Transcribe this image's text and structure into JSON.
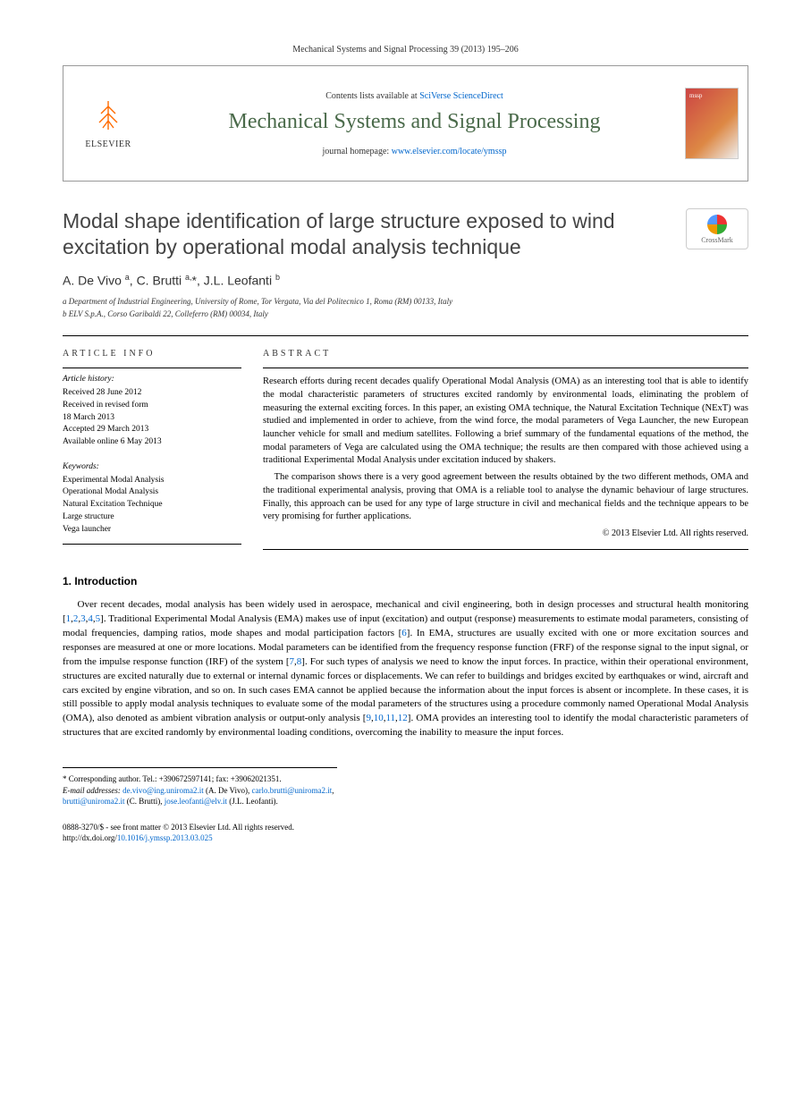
{
  "header": {
    "citation": "Mechanical Systems and Signal Processing 39 (2013) 195–206",
    "contents_prefix": "Contents lists available at ",
    "contents_link": "SciVerse ScienceDirect",
    "journal_title": "Mechanical Systems and Signal Processing",
    "homepage_prefix": "journal homepage: ",
    "homepage_link": "www.elsevier.com/locate/ymssp",
    "publisher": "ELSEVIER",
    "cover_label": "mssp"
  },
  "article": {
    "title": "Modal shape identification of large structure exposed to wind excitation by operational modal analysis technique",
    "crossmark": "CrossMark",
    "authors_html": "A. De Vivo <sup>a</sup>, C. Brutti <sup>a,</sup>*, J.L. Leofanti <sup>b</sup>",
    "affiliations": [
      "a Department of Industrial Engineering, University of Rome, Tor Vergata, Via del Politecnico 1, Roma (RM) 00133, Italy",
      "b ELV S.p.A., Corso Garibaldi 22, Colleferro (RM) 00034, Italy"
    ]
  },
  "info": {
    "label": "ARTICLE INFO",
    "history_label": "Article history:",
    "history": [
      "Received 28 June 2012",
      "Received in revised form",
      "18 March 2013",
      "Accepted 29 March 2013",
      "Available online 6 May 2013"
    ],
    "keywords_label": "Keywords:",
    "keywords": [
      "Experimental Modal Analysis",
      "Operational Modal Analysis",
      "Natural Excitation Technique",
      "Large structure",
      "Vega launcher"
    ]
  },
  "abstract": {
    "label": "ABSTRACT",
    "paragraphs": [
      "Research efforts during recent decades qualify Operational Modal Analysis (OMA) as an interesting tool that is able to identify the modal characteristic parameters of structures excited randomly by environmental loads, eliminating the problem of measuring the external exciting forces. In this paper, an existing OMA technique, the Natural Excitation Technique (NExT) was studied and implemented in order to achieve, from the wind force, the modal parameters of Vega Launcher, the new European launcher vehicle for small and medium satellites. Following a brief summary of the fundamental equations of the method, the modal parameters of Vega are calculated using the OMA technique; the results are then compared with those achieved using a traditional Experimental Modal Analysis under excitation induced by shakers.",
      "The comparison shows there is a very good agreement between the results obtained by the two different methods, OMA and the traditional experimental analysis, proving that OMA is a reliable tool to analyse the dynamic behaviour of large structures. Finally, this approach can be used for any type of large structure in civil and mechanical fields and the technique appears to be very promising for further applications."
    ],
    "copyright": "© 2013 Elsevier Ltd. All rights reserved."
  },
  "body": {
    "section_title": "1. Introduction",
    "paragraph": "Over recent decades, modal analysis has been widely used in aerospace, mechanical and civil engineering, both in design processes and structural health monitoring [1,2,3,4,5]. Traditional Experimental Modal Analysis (EMA) makes use of input (excitation) and output (response) measurements to estimate modal parameters, consisting of modal frequencies, damping ratios, mode shapes and modal participation factors [6]. In EMA, structures are usually excited with one or more excitation sources and responses are measured at one or more locations. Modal parameters can be identified from the frequency response function (FRF) of the response signal to the input signal, or from the impulse response function (IRF) of the system [7,8]. For such types of analysis we need to know the input forces. In practice, within their operational environment, structures are excited naturally due to external or internal dynamic forces or displacements. We can refer to buildings and bridges excited by earthquakes or wind, aircraft and cars excited by engine vibration, and so on. In such cases EMA cannot be applied because the information about the input forces is absent or incomplete. In these cases, it is still possible to apply modal analysis techniques to evaluate some of the modal parameters of the structures using a procedure commonly named Operational Modal Analysis (OMA), also denoted as ambient vibration analysis or output-only analysis [9,10,11,12]. OMA provides an interesting tool to identify the modal characteristic parameters of structures that are excited randomly by environmental loading conditions, overcoming the inability to measure the input forces.",
    "ref_links": [
      "1",
      "2",
      "3",
      "4",
      "5",
      "6",
      "7",
      "8",
      "9",
      "10",
      "11",
      "12"
    ]
  },
  "footnotes": {
    "corresponding": "* Corresponding author. Tel.: +390672597141; fax: +39062021351.",
    "emails_label": "E-mail addresses: ",
    "emails": [
      {
        "addr": "de.vivo@ing.uniroma2.it",
        "person": " (A. De Vivo), "
      },
      {
        "addr": "carlo.brutti@uniroma2.it",
        "person": ", "
      },
      {
        "addr": "brutti@uniroma2.it",
        "person": " (C. Brutti), "
      },
      {
        "addr": "jose.leofanti@elv.it",
        "person": " (J.L. Leofanti)."
      }
    ]
  },
  "footer": {
    "issn": "0888-3270/$ - see front matter © 2013 Elsevier Ltd. All rights reserved.",
    "doi_prefix": "http://dx.doi.org/",
    "doi": "10.1016/j.ymssp.2013.03.025"
  },
  "colors": {
    "link": "#0066cc",
    "journal_title": "#4a6a4a",
    "publisher_orange": "#ff6b00"
  }
}
